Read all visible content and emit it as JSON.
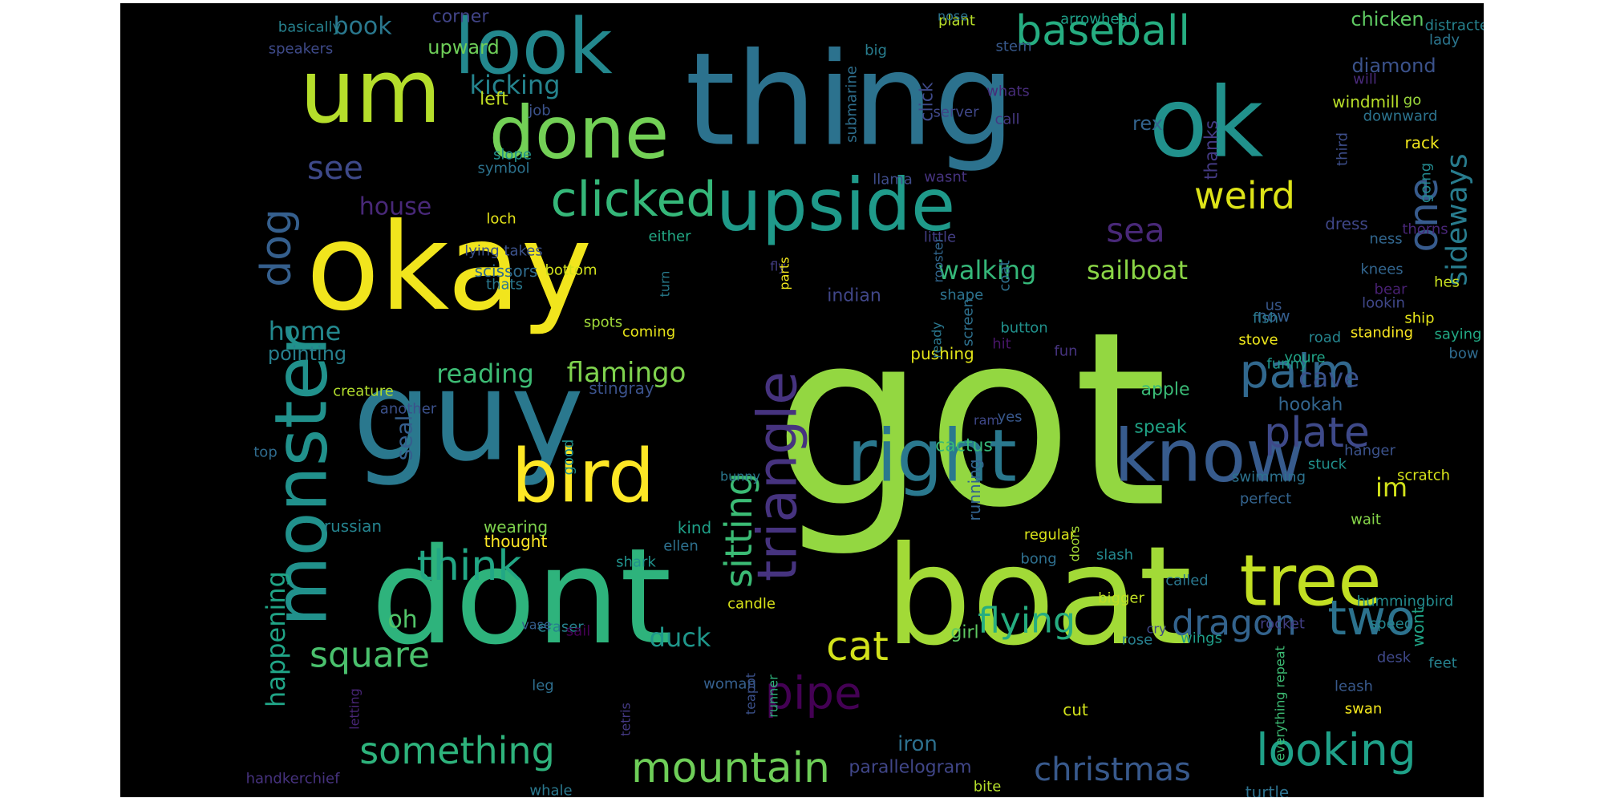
{
  "word_cloud": {
    "background_color": "#000000",
    "colormap": "viridis",
    "words": [
      {
        "text": "got",
        "color": "#93d741"
      },
      {
        "text": "okay",
        "color": "#f1e51d"
      },
      {
        "text": "thing",
        "color": "#2c728e"
      },
      {
        "text": "dont",
        "color": "#2eb37c"
      },
      {
        "text": "boat",
        "color": "#a2da37"
      },
      {
        "text": "um",
        "color": "#b5de2b"
      },
      {
        "text": "guy",
        "color": "#2a788e"
      },
      {
        "text": "ok",
        "color": "#21918c"
      },
      {
        "text": "look",
        "color": "#23888e"
      },
      {
        "text": "done",
        "color": "#73d056"
      },
      {
        "text": "upside",
        "color": "#1f9a8a"
      },
      {
        "text": "right",
        "color": "#2a788e"
      },
      {
        "text": "know",
        "color": "#375b8d"
      },
      {
        "text": "bird",
        "color": "#fde725"
      },
      {
        "text": "monster",
        "color": "#21918c"
      },
      {
        "text": "tree",
        "color": "#c2df23"
      },
      {
        "text": "triangle",
        "color": "#46337f"
      },
      {
        "text": "clicked",
        "color": "#35b779"
      },
      {
        "text": "baseball",
        "color": "#26ad81"
      },
      {
        "text": "palm",
        "color": "#31688e"
      },
      {
        "text": "plate",
        "color": "#3e4989"
      },
      {
        "text": "two",
        "color": "#2c728e"
      },
      {
        "text": "looking",
        "color": "#1fa188"
      },
      {
        "text": "mountain",
        "color": "#6ece58"
      },
      {
        "text": "sitting",
        "color": "#3bbb75"
      },
      {
        "text": "think",
        "color": "#22a785"
      },
      {
        "text": "dog",
        "color": "#355f8d"
      },
      {
        "text": "one",
        "color": "#375b8d"
      },
      {
        "text": "sideways",
        "color": "#287c8e"
      },
      {
        "text": "weird",
        "color": "#dde318"
      },
      {
        "text": "sea",
        "color": "#482878"
      },
      {
        "text": "see",
        "color": "#3e4989"
      },
      {
        "text": "cat",
        "color": "#d2e21b"
      },
      {
        "text": "square",
        "color": "#4ac16d"
      },
      {
        "text": "pipe",
        "color": "#440154"
      },
      {
        "text": "dragon",
        "color": "#33638d"
      },
      {
        "text": "christmas",
        "color": "#38598c"
      },
      {
        "text": "something",
        "color": "#2eb37c"
      },
      {
        "text": "happening",
        "color": "#20a486"
      },
      {
        "text": "flying",
        "color": "#26ad81"
      },
      {
        "text": "reading",
        "color": "#3dbc74"
      },
      {
        "text": "flamingo",
        "color": "#7fd34e"
      },
      {
        "text": "sailboat",
        "color": "#8bd646"
      },
      {
        "text": "walking",
        "color": "#35b779"
      },
      {
        "text": "kicking",
        "color": "#25848e"
      },
      {
        "text": "cave",
        "color": "#3b528b"
      },
      {
        "text": "seal",
        "color": "#355f8d"
      },
      {
        "text": "duck",
        "color": "#1f978b"
      },
      {
        "text": "home",
        "color": "#23898e"
      },
      {
        "text": "house",
        "color": "#482878"
      },
      {
        "text": "book",
        "color": "#2a788e"
      },
      {
        "text": "im",
        "color": "#d2e21b"
      },
      {
        "text": "oh",
        "color": "#52c569"
      },
      {
        "text": "pointing",
        "color": "#27808e"
      },
      {
        "text": "upward",
        "color": "#6ece58"
      },
      {
        "text": "left",
        "color": "#c2df23"
      },
      {
        "text": "corner",
        "color": "#414487"
      },
      {
        "text": "indian",
        "color": "#404688"
      },
      {
        "text": "apple",
        "color": "#3aba76"
      },
      {
        "text": "speak",
        "color": "#20a386"
      },
      {
        "text": "hookah",
        "color": "#32658e"
      },
      {
        "text": "diamond",
        "color": "#3b528b"
      },
      {
        "text": "chicken",
        "color": "#5ec962"
      },
      {
        "text": "windmill",
        "color": "#b8de29"
      },
      {
        "text": "dress",
        "color": "#3f4788"
      },
      {
        "text": "rex",
        "color": "#33638d"
      },
      {
        "text": "thanks",
        "color": "#443a83"
      },
      {
        "text": "click",
        "color": "#3e4989"
      },
      {
        "text": "pushing",
        "color": "#e2e418"
      },
      {
        "text": "parallelogram",
        "color": "#404688"
      },
      {
        "text": "girl",
        "color": "#5ec962"
      },
      {
        "text": "iron",
        "color": "#2d708e"
      },
      {
        "text": "cactus",
        "color": "#35b779"
      },
      {
        "text": "running",
        "color": "#32648e"
      },
      {
        "text": "scissors",
        "color": "#2f6c8e"
      },
      {
        "text": "russian",
        "color": "#25838e"
      },
      {
        "text": "wearing",
        "color": "#7fd34e"
      },
      {
        "text": "thought",
        "color": "#fde725"
      },
      {
        "text": "kind",
        "color": "#1fa088"
      },
      {
        "text": "ellen",
        "color": "#2d708e"
      },
      {
        "text": "shark",
        "color": "#20928c"
      },
      {
        "text": "eraser",
        "color": "#26818e"
      },
      {
        "text": "sail",
        "color": "#440154"
      },
      {
        "text": "vase",
        "color": "#355e8d"
      },
      {
        "text": "leg",
        "color": "#2e6e8e"
      },
      {
        "text": "top",
        "color": "#2f6b8e"
      },
      {
        "text": "another",
        "color": "#3b518b"
      },
      {
        "text": "creature",
        "color": "#b2dd2d"
      },
      {
        "text": "stingray",
        "color": "#3b528b"
      },
      {
        "text": "good",
        "color": "#218e8d"
      },
      {
        "text": "bunny",
        "color": "#2a778e"
      },
      {
        "text": "candle",
        "color": "#d8e219"
      },
      {
        "text": "woman",
        "color": "#355f8d"
      },
      {
        "text": "teapot",
        "color": "#3b518b"
      },
      {
        "text": "runner",
        "color": "#2eb37c"
      },
      {
        "text": "tetris",
        "color": "#443983"
      },
      {
        "text": "letting",
        "color": "#482576"
      },
      {
        "text": "handkerchief",
        "color": "#46327e"
      },
      {
        "text": "whale",
        "color": "#2a788e"
      },
      {
        "text": "bite",
        "color": "#b5de2b"
      },
      {
        "text": "cut",
        "color": "#d2e21b"
      },
      {
        "text": "regular",
        "color": "#d8e219"
      },
      {
        "text": "bong",
        "color": "#2e6f8e"
      },
      {
        "text": "slash",
        "color": "#24878e"
      },
      {
        "text": "doors",
        "color": "#a5db36"
      },
      {
        "text": "rose",
        "color": "#277f8e"
      },
      {
        "text": "cry",
        "color": "#3f4788"
      },
      {
        "text": "wings",
        "color": "#1f9e89"
      },
      {
        "text": "bigger",
        "color": "#c0df25"
      },
      {
        "text": "called",
        "color": "#2a778e"
      },
      {
        "text": "rocket",
        "color": "#423f85"
      },
      {
        "text": "hummingbird",
        "color": "#238a8d"
      },
      {
        "text": "speed",
        "color": "#24868e"
      },
      {
        "text": "wont",
        "color": "#20a386"
      },
      {
        "text": "feet",
        "color": "#26818e"
      },
      {
        "text": "desk",
        "color": "#3f4889"
      },
      {
        "text": "leash",
        "color": "#38598c"
      },
      {
        "text": "swan",
        "color": "#f1e51d"
      },
      {
        "text": "everything repeat",
        "color": "#3dbc74"
      },
      {
        "text": "turtle",
        "color": "#2d718e"
      },
      {
        "text": "wait",
        "color": "#86d549"
      },
      {
        "text": "perfect",
        "color": "#33638d"
      },
      {
        "text": "swimming",
        "color": "#2c728e"
      },
      {
        "text": "stuck",
        "color": "#21918c"
      },
      {
        "text": "hanger",
        "color": "#3b528b"
      },
      {
        "text": "scratch",
        "color": "#d5e21a"
      },
      {
        "text": "saying",
        "color": "#22a884"
      },
      {
        "text": "bow",
        "color": "#2f6b8e"
      },
      {
        "text": "ship",
        "color": "#e5e419"
      },
      {
        "text": "hes",
        "color": "#c8e020"
      },
      {
        "text": "now",
        "color": "#355e8d"
      },
      {
        "text": "us",
        "color": "#38588c"
      },
      {
        "text": "stove",
        "color": "#ece51b"
      },
      {
        "text": "fish",
        "color": "#2a788e"
      },
      {
        "text": "funny",
        "color": "#1f958b"
      },
      {
        "text": "youre",
        "color": "#20a386"
      },
      {
        "text": "road",
        "color": "#25858e"
      },
      {
        "text": "standing",
        "color": "#f8e621"
      },
      {
        "text": "lookin",
        "color": "#3f4788"
      },
      {
        "text": "bear",
        "color": "#482173"
      },
      {
        "text": "ness",
        "color": "#31668e"
      },
      {
        "text": "knees",
        "color": "#32658e"
      },
      {
        "text": "thorns",
        "color": "#482677"
      },
      {
        "text": "going",
        "color": "#23898e"
      },
      {
        "text": "rack",
        "color": "#efe51c"
      },
      {
        "text": "third",
        "color": "#3d4e8a"
      },
      {
        "text": "downward",
        "color": "#2c738e"
      },
      {
        "text": "go",
        "color": "#9bd93c"
      },
      {
        "text": "will",
        "color": "#482979"
      },
      {
        "text": "lady",
        "color": "#2b758e"
      },
      {
        "text": "distracted",
        "color": "#26828e"
      },
      {
        "text": "plant",
        "color": "#b8de29"
      },
      {
        "text": "arrowhead",
        "color": "#1fa088"
      },
      {
        "text": "stem",
        "color": "#38598c"
      },
      {
        "text": "big",
        "color": "#287d8e"
      },
      {
        "text": "nose",
        "color": "#2c738e"
      },
      {
        "text": "whats",
        "color": "#472c7a"
      },
      {
        "text": "call",
        "color": "#453882"
      },
      {
        "text": "submarine",
        "color": "#2e6f8e"
      },
      {
        "text": "llama",
        "color": "#3e4c8a"
      },
      {
        "text": "wasnt",
        "color": "#46337f"
      },
      {
        "text": "little",
        "color": "#433e85"
      },
      {
        "text": "rooster",
        "color": "#31668e"
      },
      {
        "text": "coat",
        "color": "#2d708e"
      },
      {
        "text": "shape",
        "color": "#2c728e"
      },
      {
        "text": "screen",
        "color": "#2d708e"
      },
      {
        "text": "button",
        "color": "#21918c"
      },
      {
        "text": "hit",
        "color": "#481668"
      },
      {
        "text": "fun",
        "color": "#46337f"
      },
      {
        "text": "yes",
        "color": "#38588c"
      },
      {
        "text": "ram",
        "color": "#3f4889"
      },
      {
        "text": "ready",
        "color": "#2a778e"
      },
      {
        "text": "fly",
        "color": "#433e85"
      },
      {
        "text": "parts",
        "color": "#f1e51d"
      },
      {
        "text": "either",
        "color": "#22a884"
      },
      {
        "text": "turn",
        "color": "#287c8e"
      },
      {
        "text": "coming",
        "color": "#e7e419"
      },
      {
        "text": "spots",
        "color": "#a0da39"
      },
      {
        "text": "bottom",
        "color": "#d0e11c"
      },
      {
        "text": "thats",
        "color": "#2a788e"
      },
      {
        "text": "lying takes",
        "color": "#3b528b"
      },
      {
        "text": "loch",
        "color": "#e5e419"
      },
      {
        "text": "slope",
        "color": "#21918c"
      },
      {
        "text": "symbol",
        "color": "#2c728e"
      },
      {
        "text": "job",
        "color": "#3b528b"
      },
      {
        "text": "server",
        "color": "#3f4788"
      },
      {
        "text": "basically",
        "color": "#26818e"
      },
      {
        "text": "speakers",
        "color": "#3e4a89"
      }
    ]
  }
}
